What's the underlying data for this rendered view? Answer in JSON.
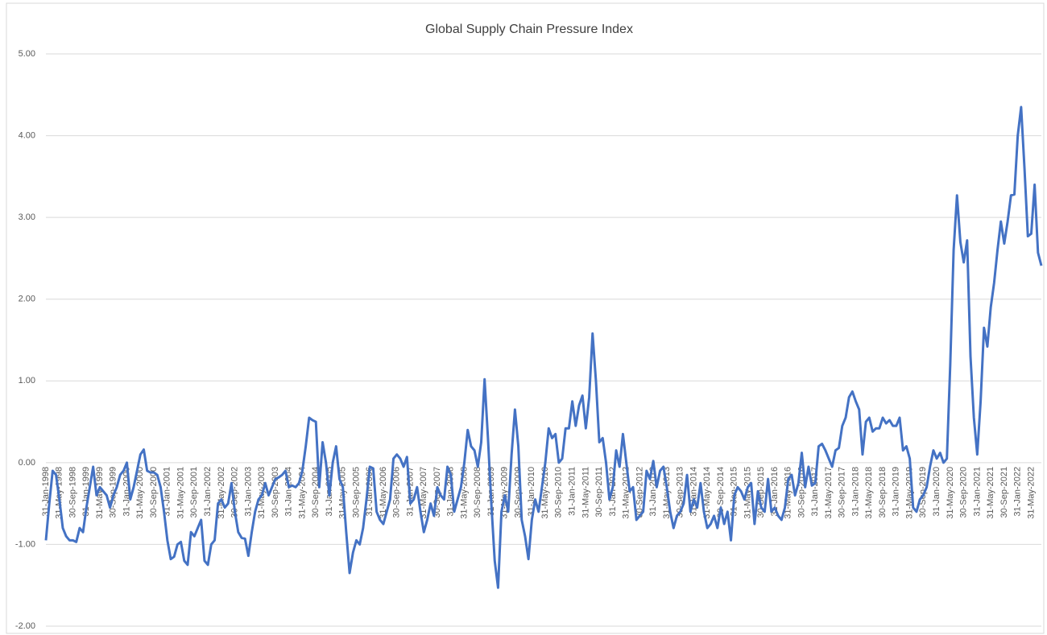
{
  "chart_data": {
    "type": "line",
    "title": "Global Supply Chain Pressure Index",
    "ylim": [
      -2,
      5
    ],
    "yticks": [
      {
        "value": -2,
        "label": "-2.00"
      },
      {
        "value": -1,
        "label": "-1.00"
      },
      {
        "value": 0,
        "label": "0.00"
      },
      {
        "value": 1,
        "label": "1.00"
      },
      {
        "value": 2,
        "label": "2.00"
      },
      {
        "value": 3,
        "label": "3.00"
      },
      {
        "value": 4,
        "label": "4.00"
      },
      {
        "value": 5,
        "label": "5.00"
      }
    ],
    "grid": true,
    "categories": [
      "31-Jan-1998",
      null,
      null,
      null,
      "31-May-1998",
      null,
      null,
      null,
      "30-Sep-1998",
      null,
      null,
      null,
      "31-Jan-1999",
      null,
      null,
      null,
      "31-May-1999",
      null,
      null,
      null,
      "30-Sep-1999",
      null,
      null,
      null,
      "31-Jan-2000",
      null,
      null,
      null,
      "31-May-2000",
      null,
      null,
      null,
      "30-Sep-2000",
      null,
      null,
      null,
      "31-Jan-2001",
      null,
      null,
      null,
      "31-May-2001",
      null,
      null,
      null,
      "30-Sep-2001",
      null,
      null,
      null,
      "31-Jan-2002",
      null,
      null,
      null,
      "31-May-2002",
      null,
      null,
      null,
      "30-Sep-2002",
      null,
      null,
      null,
      "31-Jan-2003",
      null,
      null,
      null,
      "31-May-2003",
      null,
      null,
      null,
      "30-Sep-2003",
      null,
      null,
      null,
      "31-Jan-2004",
      null,
      null,
      null,
      "31-May-2004",
      null,
      null,
      null,
      "30-Sep-2004",
      null,
      null,
      null,
      "31-Jan-2005",
      null,
      null,
      null,
      "31-May-2005",
      null,
      null,
      null,
      "30-Sep-2005",
      null,
      null,
      null,
      "31-Jan-2006",
      null,
      null,
      null,
      "31-May-2006",
      null,
      null,
      null,
      "30-Sep-2006",
      null,
      null,
      null,
      "31-Jan-2007",
      null,
      null,
      null,
      "31-May-2007",
      null,
      null,
      null,
      "30-Sep-2007",
      null,
      null,
      null,
      "31-Jan-2008",
      null,
      null,
      null,
      "31-May-2008",
      null,
      null,
      null,
      "30-Sep-2008",
      null,
      null,
      null,
      "31-Jan-2009",
      null,
      null,
      null,
      "31-May-2009",
      null,
      null,
      null,
      "30-Sep-2009",
      null,
      null,
      null,
      "31-Jan-2010",
      null,
      null,
      null,
      "31-May-2010",
      null,
      null,
      null,
      "30-Sep-2010",
      null,
      null,
      null,
      "31-Jan-2011",
      null,
      null,
      null,
      "31-May-2011",
      null,
      null,
      null,
      "30-Sep-2011",
      null,
      null,
      null,
      "31-Jan-2012",
      null,
      null,
      null,
      "31-May-2012",
      null,
      null,
      null,
      "30-Sep-2012",
      null,
      null,
      null,
      "31-Jan-2013",
      null,
      null,
      null,
      "31-May-2013",
      null,
      null,
      null,
      "30-Sep-2013",
      null,
      null,
      null,
      "31-Jan-2014",
      null,
      null,
      null,
      "31-May-2014",
      null,
      null,
      null,
      "30-Sep-2014",
      null,
      null,
      null,
      "31-Jan-2015",
      null,
      null,
      null,
      "31-May-2015",
      null,
      null,
      null,
      "30-Sep-2015",
      null,
      null,
      null,
      "31-Jan-2016",
      null,
      null,
      null,
      "31-May-2016",
      null,
      null,
      null,
      "30-Sep-2016",
      null,
      null,
      null,
      "31-Jan-2017",
      null,
      null,
      null,
      "31-May-2017",
      null,
      null,
      null,
      "30-Sep-2017",
      null,
      null,
      null,
      "31-Jan-2018",
      null,
      null,
      null,
      "31-May-2018",
      null,
      null,
      null,
      "30-Sep-2018",
      null,
      null,
      null,
      "31-Jan-2019",
      null,
      null,
      null,
      "31-May-2019",
      null,
      null,
      null,
      "30-Sep-2019",
      null,
      null,
      null,
      "31-Jan-2020",
      null,
      null,
      null,
      "31-May-2020",
      null,
      null,
      null,
      "30-Sep-2020",
      null,
      null,
      null,
      "31-Jan-2021",
      null,
      null,
      null,
      "31-May-2021",
      null,
      null,
      null,
      "30-Sep-2021",
      null,
      null,
      null,
      "31-Jan-2022",
      null,
      null,
      null,
      "31-May-2022",
      null,
      null,
      null
    ],
    "series": [
      {
        "color": "#4472c4",
        "values": [
          -0.95,
          -0.5,
          -0.1,
          -0.15,
          -0.45,
          -0.8,
          -0.9,
          -0.95,
          -0.95,
          -0.97,
          -0.8,
          -0.85,
          -0.55,
          -0.3,
          -0.05,
          -0.4,
          -0.3,
          -0.35,
          -0.4,
          -0.55,
          -0.4,
          -0.3,
          -0.15,
          -0.1,
          0.0,
          -0.45,
          -0.3,
          -0.1,
          0.1,
          0.16,
          -0.1,
          -0.12,
          -0.12,
          -0.15,
          -0.3,
          -0.6,
          -0.95,
          -1.18,
          -1.15,
          -1.0,
          -0.97,
          -1.2,
          -1.25,
          -0.85,
          -0.9,
          -0.8,
          -0.7,
          -1.2,
          -1.25,
          -1.0,
          -0.95,
          -0.5,
          -0.45,
          -0.55,
          -0.5,
          -0.25,
          -0.6,
          -0.85,
          -0.92,
          -0.93,
          -1.14,
          -0.85,
          -0.6,
          -0.45,
          -0.4,
          -0.25,
          -0.4,
          -0.3,
          -0.2,
          -0.18,
          -0.15,
          -0.1,
          -0.3,
          -0.28,
          -0.3,
          -0.25,
          -0.1,
          0.2,
          0.55,
          0.52,
          0.5,
          -0.3,
          0.25,
          0.0,
          -0.4,
          0.0,
          0.2,
          -0.2,
          -0.3,
          -0.85,
          -1.35,
          -1.1,
          -0.95,
          -1.0,
          -0.8,
          -0.45,
          -0.05,
          -0.07,
          -0.6,
          -0.7,
          -0.75,
          -0.6,
          -0.45,
          0.05,
          0.1,
          0.05,
          -0.05,
          0.07,
          -0.5,
          -0.45,
          -0.3,
          -0.6,
          -0.85,
          -0.7,
          -0.5,
          -0.65,
          -0.3,
          -0.4,
          -0.45,
          -0.05,
          -0.15,
          -0.6,
          -0.45,
          -0.3,
          0.0,
          0.4,
          0.2,
          0.15,
          -0.05,
          0.25,
          1.02,
          0.3,
          -0.5,
          -1.2,
          -1.53,
          -0.6,
          -0.4,
          -0.6,
          0.1,
          0.65,
          0.2,
          -0.7,
          -0.9,
          -1.18,
          -0.7,
          -0.45,
          -0.6,
          -0.3,
          0.0,
          0.42,
          0.3,
          0.35,
          0.0,
          0.05,
          0.42,
          0.42,
          0.75,
          0.45,
          0.7,
          0.82,
          0.42,
          0.8,
          1.58,
          1.0,
          0.25,
          0.3,
          0.0,
          -0.45,
          -0.3,
          0.15,
          -0.05,
          0.35,
          0.0,
          -0.35,
          -0.3,
          -0.7,
          -0.65,
          -0.6,
          -0.1,
          -0.2,
          0.02,
          -0.3,
          -0.1,
          -0.05,
          -0.3,
          -0.6,
          -0.8,
          -0.65,
          -0.6,
          -0.5,
          -0.15,
          -0.6,
          -0.45,
          -0.55,
          -0.25,
          -0.6,
          -0.8,
          -0.75,
          -0.65,
          -0.8,
          -0.55,
          -0.75,
          -0.6,
          -0.95,
          -0.4,
          -0.3,
          -0.35,
          -0.45,
          -0.3,
          -0.25,
          -0.75,
          -0.35,
          -0.55,
          -0.6,
          -0.2,
          -0.6,
          -0.55,
          -0.65,
          -0.7,
          -0.55,
          -0.2,
          -0.15,
          -0.4,
          -0.25,
          0.12,
          -0.3,
          -0.05,
          -0.28,
          -0.25,
          0.2,
          0.23,
          0.15,
          0.05,
          -0.05,
          0.15,
          0.18,
          0.45,
          0.55,
          0.8,
          0.87,
          0.75,
          0.65,
          0.1,
          0.5,
          0.55,
          0.38,
          0.42,
          0.42,
          0.55,
          0.48,
          0.52,
          0.45,
          0.45,
          0.55,
          0.15,
          0.2,
          0.05,
          -0.55,
          -0.6,
          -0.45,
          -0.4,
          -0.3,
          -0.05,
          0.15,
          0.05,
          0.12,
          0.0,
          0.05,
          1.2,
          2.6,
          3.27,
          2.7,
          2.45,
          2.72,
          1.3,
          0.55,
          0.1,
          0.75,
          1.65,
          1.42,
          1.9,
          2.2,
          2.6,
          2.95,
          2.68,
          2.95,
          3.27,
          3.28,
          4.0,
          4.35,
          3.6,
          2.77,
          2.8,
          3.4,
          2.57,
          2.41
        ]
      }
    ]
  }
}
